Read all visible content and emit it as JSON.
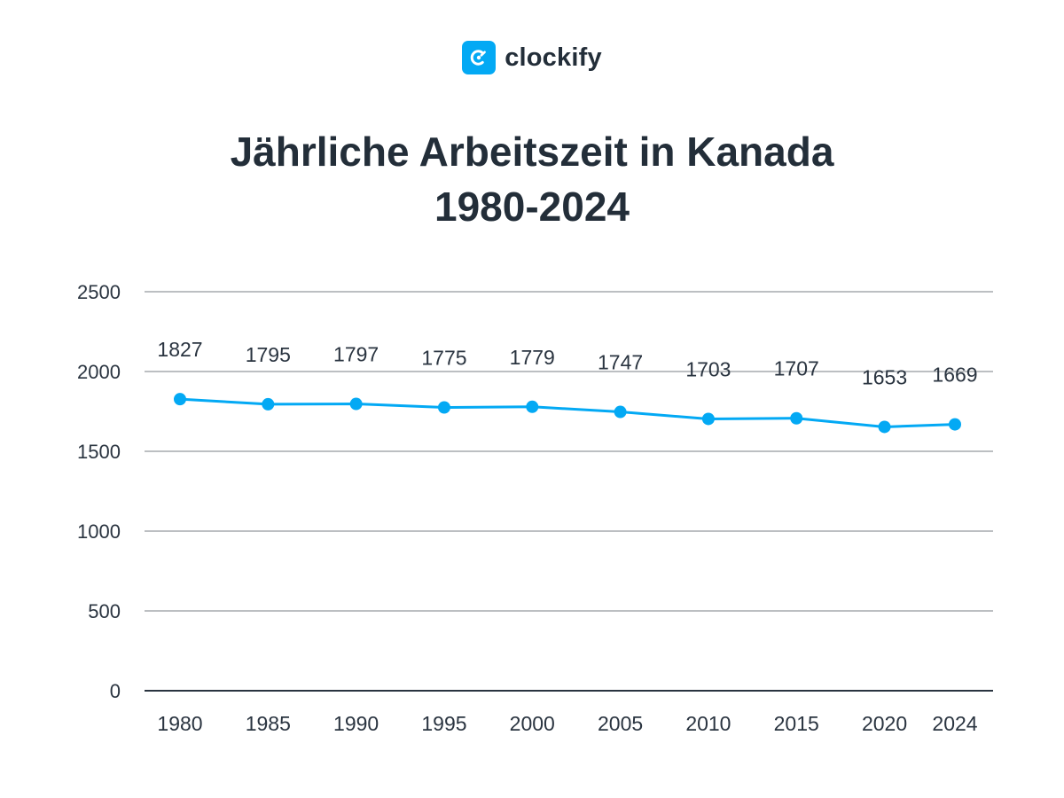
{
  "brand": {
    "name": "clockify",
    "icon": "clockify-logo-icon"
  },
  "title_line1": "Jährliche Arbeitszeit in Kanada",
  "title_line2": "1980-2024",
  "colors": {
    "accent": "#03a9f4",
    "text": "#232e39",
    "grid": "#7a7f85"
  },
  "chart_data": {
    "type": "line",
    "categories": [
      "1980",
      "1985",
      "1990",
      "1995",
      "2000",
      "2005",
      "2010",
      "2015",
      "2020",
      "2024"
    ],
    "values": [
      1827,
      1795,
      1797,
      1775,
      1779,
      1747,
      1703,
      1707,
      1653,
      1669
    ],
    "data_labels": [
      "1827",
      "1795",
      "1797",
      "1775",
      "1779",
      "1747",
      "1703",
      "1707",
      "1653",
      "1669"
    ],
    "ylim": [
      0,
      2500
    ],
    "yticks": [
      "0",
      "500",
      "1000",
      "1500",
      "2000",
      "2500"
    ],
    "grid": true,
    "title": "Jährliche Arbeitszeit in Kanada 1980-2024",
    "xlabel": "",
    "ylabel": ""
  }
}
